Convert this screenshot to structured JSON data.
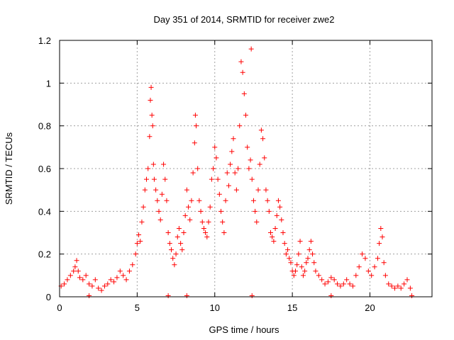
{
  "chart_data": {
    "type": "scatter",
    "title": "Day 351 of 2014, SRMTID for receiver zwe2",
    "xlabel": "GPS time / hours",
    "ylabel": "SRMTID / TECUs",
    "xlim": [
      0,
      24
    ],
    "ylim": [
      0,
      1.2
    ],
    "x_ticks": [
      0,
      5,
      10,
      15,
      20
    ],
    "x_tick_labels": [
      "0",
      "5",
      "10",
      "15",
      "20"
    ],
    "y_ticks": [
      0,
      0.2,
      0.4,
      0.6,
      0.8,
      1.0,
      1.2
    ],
    "y_tick_labels": [
      "0",
      "0.2",
      "0.4",
      "0.6",
      "0.8",
      "1",
      "1.2"
    ],
    "grid": true,
    "marker": "plus",
    "colors": {
      "series": "#ff0000",
      "grid": "#a0a0a0",
      "axis": "#000000"
    },
    "series": [
      {
        "name": "SRMTID",
        "x": [
          0.1,
          0.3,
          0.5,
          0.7,
          0.9,
          1.0,
          1.1,
          1.2,
          1.3,
          1.5,
          1.7,
          1.9,
          2.1,
          2.3,
          2.5,
          2.7,
          2.9,
          3.1,
          3.3,
          3.5,
          3.7,
          3.9,
          4.1,
          4.3,
          4.5,
          4.7,
          4.9,
          5.0,
          5.1,
          5.2,
          5.3,
          5.4,
          5.5,
          5.6,
          5.7,
          5.8,
          5.85,
          5.9,
          5.95,
          6.0,
          6.05,
          6.1,
          6.2,
          6.3,
          6.4,
          6.5,
          6.6,
          6.7,
          6.8,
          6.9,
          7.0,
          7.1,
          7.2,
          7.3,
          7.4,
          7.5,
          7.6,
          7.7,
          7.8,
          7.9,
          8.0,
          8.1,
          8.2,
          8.3,
          8.4,
          8.5,
          8.6,
          8.7,
          8.75,
          8.8,
          8.9,
          9.0,
          9.1,
          9.2,
          9.3,
          9.4,
          9.5,
          9.6,
          9.7,
          9.8,
          9.9,
          10.0,
          10.1,
          10.2,
          10.3,
          10.4,
          10.5,
          10.6,
          10.7,
          10.8,
          10.9,
          11.0,
          11.1,
          11.2,
          11.3,
          11.4,
          11.5,
          11.6,
          11.7,
          11.8,
          11.9,
          12.0,
          12.1,
          12.2,
          12.3,
          12.35,
          12.4,
          12.5,
          12.6,
          12.7,
          12.8,
          12.9,
          13.0,
          13.1,
          13.2,
          13.3,
          13.4,
          13.5,
          13.6,
          13.7,
          13.8,
          13.9,
          14.0,
          14.1,
          14.2,
          14.3,
          14.4,
          14.5,
          14.6,
          14.7,
          14.8,
          14.9,
          15.0,
          15.1,
          15.2,
          15.3,
          15.4,
          15.5,
          15.6,
          15.7,
          15.8,
          15.9,
          16.0,
          16.1,
          16.2,
          16.3,
          16.4,
          16.5,
          16.7,
          16.9,
          17.1,
          17.3,
          17.5,
          17.7,
          17.9,
          18.1,
          18.3,
          18.5,
          18.7,
          18.9,
          19.1,
          19.3,
          19.5,
          19.7,
          19.9,
          20.1,
          20.3,
          20.5,
          20.6,
          20.7,
          20.8,
          20.9,
          21.0,
          21.2,
          21.4,
          21.6,
          21.8,
          22.0,
          22.2,
          22.4,
          22.6,
          1.9,
          7.0,
          8.2,
          12.4,
          17.5,
          22.7
        ],
        "y": [
          0.05,
          0.06,
          0.08,
          0.1,
          0.12,
          0.14,
          0.17,
          0.12,
          0.09,
          0.08,
          0.1,
          0.06,
          0.05,
          0.08,
          0.04,
          0.03,
          0.05,
          0.06,
          0.08,
          0.07,
          0.09,
          0.12,
          0.1,
          0.08,
          0.12,
          0.15,
          0.2,
          0.25,
          0.29,
          0.26,
          0.35,
          0.42,
          0.5,
          0.55,
          0.6,
          0.75,
          0.92,
          0.98,
          0.85,
          0.8,
          0.62,
          0.55,
          0.5,
          0.45,
          0.4,
          0.36,
          0.48,
          0.62,
          0.55,
          0.45,
          0.3,
          0.25,
          0.22,
          0.18,
          0.15,
          0.2,
          0.28,
          0.32,
          0.25,
          0.22,
          0.3,
          0.38,
          0.5,
          0.42,
          0.36,
          0.45,
          0.58,
          0.72,
          0.85,
          0.8,
          0.6,
          0.45,
          0.4,
          0.35,
          0.32,
          0.3,
          0.28,
          0.35,
          0.42,
          0.55,
          0.6,
          0.7,
          0.65,
          0.55,
          0.48,
          0.4,
          0.35,
          0.3,
          0.45,
          0.58,
          0.52,
          0.62,
          0.68,
          0.74,
          0.58,
          0.5,
          0.6,
          0.8,
          1.1,
          1.05,
          0.95,
          0.85,
          0.7,
          0.6,
          0.64,
          1.16,
          0.55,
          0.45,
          0.4,
          0.35,
          0.5,
          0.62,
          0.78,
          0.74,
          0.65,
          0.5,
          0.45,
          0.4,
          0.3,
          0.28,
          0.26,
          0.32,
          0.38,
          0.45,
          0.42,
          0.36,
          0.3,
          0.25,
          0.2,
          0.22,
          0.18,
          0.16,
          0.12,
          0.1,
          0.12,
          0.15,
          0.2,
          0.26,
          0.14,
          0.1,
          0.12,
          0.16,
          0.18,
          0.22,
          0.26,
          0.2,
          0.16,
          0.12,
          0.1,
          0.08,
          0.06,
          0.07,
          0.09,
          0.08,
          0.06,
          0.05,
          0.06,
          0.08,
          0.06,
          0.05,
          0.1,
          0.14,
          0.2,
          0.18,
          0.12,
          0.1,
          0.14,
          0.18,
          0.25,
          0.32,
          0.28,
          0.16,
          0.1,
          0.06,
          0.05,
          0.04,
          0.05,
          0.04,
          0.06,
          0.08,
          0.04,
          0.005,
          0.005,
          0.005,
          0.005,
          0.005,
          0.005
        ]
      }
    ]
  }
}
